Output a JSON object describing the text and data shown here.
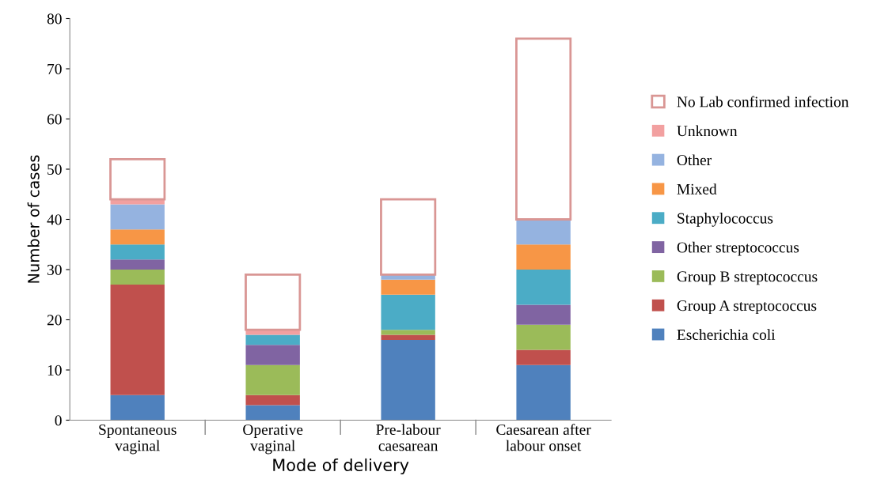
{
  "chart_data": {
    "type": "bar",
    "stacked": true,
    "xlabel": "Mode of delivery",
    "ylabel": "Number of cases",
    "categories": [
      "Spontaneous\nvaginal",
      "Operative\nvaginal",
      "Pre-labour\ncaesarean",
      "Caesarean after\nlabour onset"
    ],
    "ylim": [
      0,
      80
    ],
    "yticks": [
      0,
      10,
      20,
      30,
      40,
      50,
      60,
      70,
      80
    ],
    "grid": false,
    "legend": "right",
    "series": [
      {
        "name": "Escherichia coli",
        "color": "#4f81bd",
        "values": [
          5,
          3,
          16,
          11
        ]
      },
      {
        "name": "Group A streptococcus",
        "color": "#c0504d",
        "values": [
          22,
          2,
          1,
          3
        ]
      },
      {
        "name": "Group B streptococcus",
        "color": "#9bbb59",
        "values": [
          3,
          6,
          1,
          5
        ]
      },
      {
        "name": "Other streptococcus",
        "color": "#8064a2",
        "values": [
          2,
          4,
          0,
          4
        ]
      },
      {
        "name": "Staphylococcus",
        "color": "#4bacc6",
        "values": [
          3,
          2,
          7,
          7
        ]
      },
      {
        "name": "Mixed",
        "color": "#f79646",
        "values": [
          3,
          0,
          3,
          5
        ]
      },
      {
        "name": "Other",
        "color": "#95b3e0",
        "values": [
          5,
          0,
          1,
          5
        ]
      },
      {
        "name": "Unknown",
        "color": "#f2a0a0",
        "values": [
          1,
          1,
          0,
          0
        ]
      },
      {
        "name": "No Lab confirmed infection",
        "color": "#d99694",
        "line_style": "solid",
        "values": [
          8,
          11,
          15,
          36
        ]
      }
    ]
  }
}
